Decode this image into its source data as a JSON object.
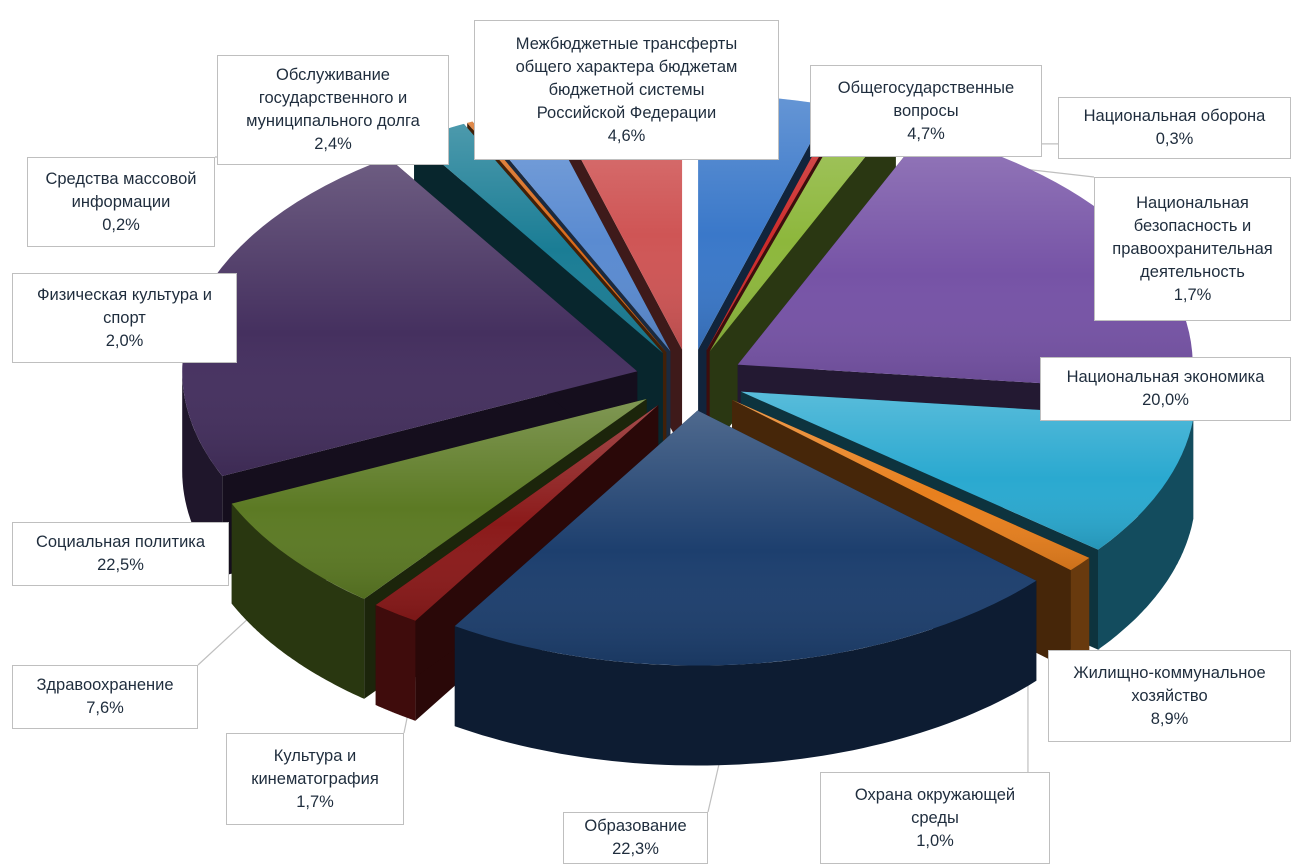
{
  "chart_data": {
    "type": "pie",
    "variant": "3d-exploded",
    "start_angle_deg": 90,
    "direction": "clockwise",
    "title": "",
    "slices": [
      {
        "label": "Общегосударственные вопросы",
        "display_label": "Общегосударственные\nвопросы",
        "value": 4.7,
        "value_text": "4,7%",
        "color": "#3a78c9"
      },
      {
        "label": "Национальная оборона",
        "display_label": "Национальная оборона",
        "value": 0.3,
        "value_text": "0,3%",
        "color": "#cc2b2b"
      },
      {
        "label": "Национальная безопасность и правоохранительная деятельность",
        "display_label": "Национальная\nбезопасность и\nправоохранительная\nдеятельность",
        "value": 1.7,
        "value_text": "1,7%",
        "color": "#8db73c"
      },
      {
        "label": "Национальная экономика",
        "display_label": "Национальная экономика",
        "value": 20.0,
        "value_text": "20,0%",
        "color": "#7653a6"
      },
      {
        "label": "Жилищно-коммунальное хозяйство",
        "display_label": "Жилищно-коммунальное\nхозяйство",
        "value": 8.9,
        "value_text": "8,9%",
        "color": "#2aa9d0"
      },
      {
        "label": "Охрана окружающей среды",
        "display_label": "Охрана окружающей\nсреды",
        "value": 1.0,
        "value_text": "1,0%",
        "color": "#e8801e"
      },
      {
        "label": "Образование",
        "display_label": "Образование",
        "value": 22.3,
        "value_text": "22,3%",
        "color": "#1d3f6e"
      },
      {
        "label": "Культура и кинематография",
        "display_label": "Культура и\nкинематография",
        "value": 1.7,
        "value_text": "1,7%",
        "color": "#8b1a1a"
      },
      {
        "label": "Здравоохранение",
        "display_label": "Здравоохранение",
        "value": 7.6,
        "value_text": "7,6%",
        "color": "#5c7a24"
      },
      {
        "label": "Социальная политика",
        "display_label": "Социальная политика",
        "value": 22.5,
        "value_text": "22,5%",
        "color": "#45305f"
      },
      {
        "label": "Физическая культура и спорт",
        "display_label": "Физическая культура и\nспорт",
        "value": 2.0,
        "value_text": "2,0%",
        "color": "#1a7d95"
      },
      {
        "label": "Средства массовой информации",
        "display_label": "Средства массовой\nинформации",
        "value": 0.2,
        "value_text": "0,2%",
        "color": "#d86a1a"
      },
      {
        "label": "Обслуживание государственного и муниципального долга",
        "display_label": "Обслуживание\nгосударственного и\nмуниципального долга",
        "value": 2.4,
        "value_text": "2,4%",
        "color": "#5a8bd1"
      },
      {
        "label": "Межбюджетные трансферты общего характера бюджетам бюджетной системы Российской Федерации",
        "display_label": "Межбюджетные трансферты\nобщего характера бюджетам\nбюджетной системы\nРоссийской Федерации",
        "value": 4.6,
        "value_text": "4,6%",
        "color": "#cf5555"
      }
    ]
  }
}
